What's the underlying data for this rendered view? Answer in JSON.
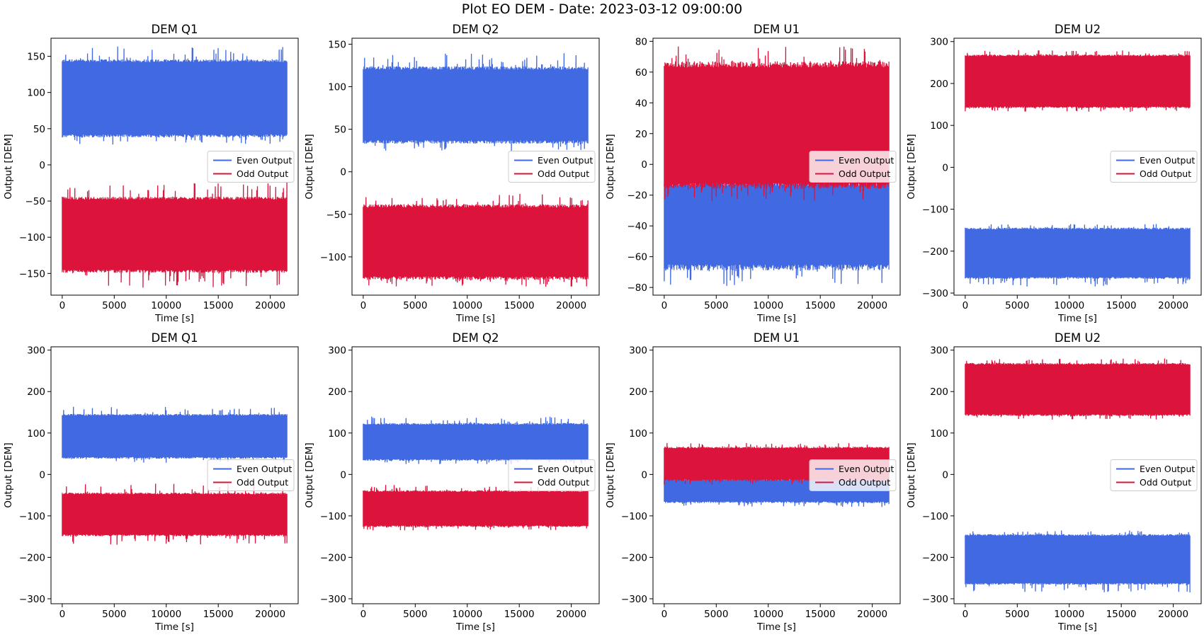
{
  "suptitle": "Plot EO DEM - Date: 2023-03-12 09:00:00",
  "colors": {
    "even": "#4169e1",
    "odd": "#dc143c",
    "axes": "#000000",
    "legend_border": "#cccccc"
  },
  "chart_data": [
    {
      "type": "line",
      "title": "DEM Q1",
      "xlabel": "Time [s]",
      "ylabel": "Output [DEM]",
      "xlim": [
        -1080,
        22680
      ],
      "xticks": [
        0,
        5000,
        10000,
        15000,
        20000
      ],
      "ylim": [
        -180,
        175
      ],
      "yticks": [
        -150,
        -100,
        -50,
        0,
        50,
        100,
        150
      ],
      "x_range": [
        0,
        21600
      ],
      "legend": "center right",
      "series": [
        {
          "name": "Even Output",
          "color_key": "even",
          "band_min": 42,
          "band_max": 142,
          "spike_min": 28,
          "spike_max": 164
        },
        {
          "name": "Odd Output",
          "color_key": "odd",
          "band_min": -145,
          "band_max": -48,
          "spike_min": -170,
          "spike_max": -22
        }
      ]
    },
    {
      "type": "line",
      "title": "DEM Q2",
      "xlabel": "Time [s]",
      "ylabel": "Output [DEM]",
      "xlim": [
        -1080,
        22680
      ],
      "xticks": [
        0,
        5000,
        10000,
        15000,
        20000
      ],
      "ylim": [
        -145,
        157
      ],
      "yticks": [
        -100,
        -50,
        0,
        50,
        100,
        150
      ],
      "x_range": [
        0,
        21600
      ],
      "legend": "center right",
      "series": [
        {
          "name": "Even Output",
          "color_key": "even",
          "band_min": 37,
          "band_max": 120,
          "spike_min": 24,
          "spike_max": 140
        },
        {
          "name": "Odd Output",
          "color_key": "odd",
          "band_min": -123,
          "band_max": -42,
          "spike_min": -135,
          "spike_max": -25
        }
      ]
    },
    {
      "type": "line",
      "title": "DEM U1",
      "xlabel": "Time [s]",
      "ylabel": "Output [DEM]",
      "xlim": [
        -1080,
        22680
      ],
      "xticks": [
        0,
        5000,
        10000,
        15000,
        20000
      ],
      "ylim": [
        -85,
        82
      ],
      "yticks": [
        -80,
        -60,
        -40,
        -20,
        0,
        20,
        40,
        60,
        80
      ],
      "x_range": [
        0,
        21600
      ],
      "legend": "center right",
      "series": [
        {
          "name": "Even Output",
          "color_key": "even",
          "band_min": -65,
          "band_max": -14,
          "spike_min": -79,
          "spike_max": -5
        },
        {
          "name": "Odd Output",
          "color_key": "odd",
          "band_min": -12,
          "band_max": 63,
          "spike_min": -25,
          "spike_max": 77
        }
      ]
    },
    {
      "type": "line",
      "title": "DEM U2",
      "xlabel": "Time [s]",
      "ylabel": "Output [DEM]",
      "xlim": [
        -1080,
        22680
      ],
      "xticks": [
        0,
        5000,
        10000,
        15000,
        20000
      ],
      "ylim": [
        -305,
        308
      ],
      "yticks": [
        -300,
        -200,
        -100,
        0,
        100,
        200,
        300
      ],
      "x_range": [
        0,
        21600
      ],
      "legend": "center right",
      "series": [
        {
          "name": "Even Output",
          "color_key": "even",
          "band_min": -262,
          "band_max": -148,
          "spike_min": -285,
          "spike_max": -135
        },
        {
          "name": "Odd Output",
          "color_key": "odd",
          "band_min": 145,
          "band_max": 265,
          "spike_min": 132,
          "spike_max": 280
        }
      ]
    },
    {
      "type": "line",
      "title": "DEM Q1",
      "xlabel": "Time [s]",
      "ylabel": "Output [DEM]",
      "xlim": [
        -1080,
        22680
      ],
      "xticks": [
        0,
        5000,
        10000,
        15000,
        20000
      ],
      "ylim": [
        -312,
        308
      ],
      "yticks": [
        -300,
        -200,
        -100,
        0,
        100,
        200,
        300
      ],
      "x_range": [
        0,
        21600
      ],
      "legend": "center right",
      "series": [
        {
          "name": "Even Output",
          "color_key": "even",
          "band_min": 42,
          "band_max": 142,
          "spike_min": 28,
          "spike_max": 164
        },
        {
          "name": "Odd Output",
          "color_key": "odd",
          "band_min": -145,
          "band_max": -48,
          "spike_min": -170,
          "spike_max": -22
        }
      ]
    },
    {
      "type": "line",
      "title": "DEM Q2",
      "xlabel": "Time [s]",
      "ylabel": "Output [DEM]",
      "xlim": [
        -1080,
        22680
      ],
      "xticks": [
        0,
        5000,
        10000,
        15000,
        20000
      ],
      "ylim": [
        -312,
        308
      ],
      "yticks": [
        -300,
        -200,
        -100,
        0,
        100,
        200,
        300
      ],
      "x_range": [
        0,
        21600
      ],
      "legend": "center right",
      "series": [
        {
          "name": "Even Output",
          "color_key": "even",
          "band_min": 37,
          "band_max": 120,
          "spike_min": 24,
          "spike_max": 140
        },
        {
          "name": "Odd Output",
          "color_key": "odd",
          "band_min": -123,
          "band_max": -42,
          "spike_min": -135,
          "spike_max": -25
        }
      ]
    },
    {
      "type": "line",
      "title": "DEM U1",
      "xlabel": "Time [s]",
      "ylabel": "Output [DEM]",
      "xlim": [
        -1080,
        22680
      ],
      "xticks": [
        0,
        5000,
        10000,
        15000,
        20000
      ],
      "ylim": [
        -312,
        308
      ],
      "yticks": [
        -300,
        -200,
        -100,
        0,
        100,
        200,
        300
      ],
      "x_range": [
        0,
        21600
      ],
      "legend": "center right",
      "series": [
        {
          "name": "Even Output",
          "color_key": "even",
          "band_min": -65,
          "band_max": -14,
          "spike_min": -79,
          "spike_max": -5
        },
        {
          "name": "Odd Output",
          "color_key": "odd",
          "band_min": -12,
          "band_max": 63,
          "spike_min": -25,
          "spike_max": 77
        }
      ]
    },
    {
      "type": "line",
      "title": "DEM U2",
      "xlabel": "Time [s]",
      "ylabel": "Output [DEM]",
      "xlim": [
        -1080,
        22680
      ],
      "xticks": [
        0,
        5000,
        10000,
        15000,
        20000
      ],
      "ylim": [
        -312,
        308
      ],
      "yticks": [
        -300,
        -200,
        -100,
        0,
        100,
        200,
        300
      ],
      "x_range": [
        0,
        21600
      ],
      "legend": "center right",
      "series": [
        {
          "name": "Even Output",
          "color_key": "even",
          "band_min": -262,
          "band_max": -148,
          "spike_min": -285,
          "spike_max": -135
        },
        {
          "name": "Odd Output",
          "color_key": "odd",
          "band_min": 145,
          "band_max": 265,
          "spike_min": 132,
          "spike_max": 280
        }
      ]
    }
  ]
}
